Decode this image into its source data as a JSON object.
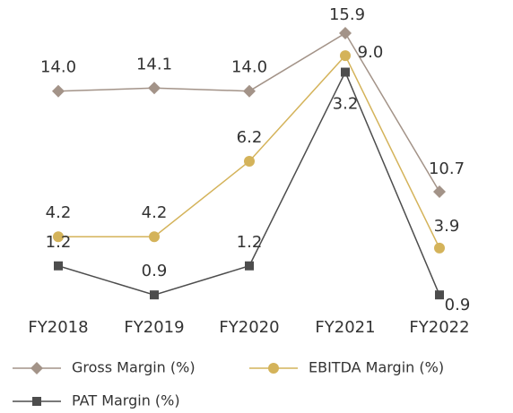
{
  "chart_data": {
    "type": "line",
    "categories": [
      "FY2018",
      "FY2019",
      "FY2020",
      "FY2021",
      "FY2022"
    ],
    "series": [
      {
        "name": "Gross Margin (%)",
        "color": "#a39388",
        "marker": "diamond",
        "ylim": [
          7,
          16.4
        ],
        "values": [
          14.0,
          14.1,
          14.0,
          15.9,
          10.7
        ],
        "value_labels": [
          "14.0",
          "14.1",
          "14.0",
          "15.9",
          "10.7"
        ]
      },
      {
        "name": "EBITDA Margin (%)",
        "color": "#d4b35a",
        "marker": "circle",
        "ylim": [
          2.4,
          10
        ],
        "values": [
          4.2,
          4.2,
          6.2,
          9.0,
          3.9
        ],
        "value_labels": [
          "4.2",
          "4.2",
          "6.2",
          "9.0",
          "3.9"
        ]
      },
      {
        "name": "PAT Margin (%)",
        "color": "#4d4d4d",
        "marker": "square",
        "ylim": [
          0.8,
          3.76
        ],
        "values": [
          1.2,
          0.9,
          1.2,
          3.2,
          0.9
        ],
        "value_labels": [
          "1.2",
          "0.9",
          "1.2",
          "3.2",
          "0.9"
        ]
      }
    ]
  }
}
